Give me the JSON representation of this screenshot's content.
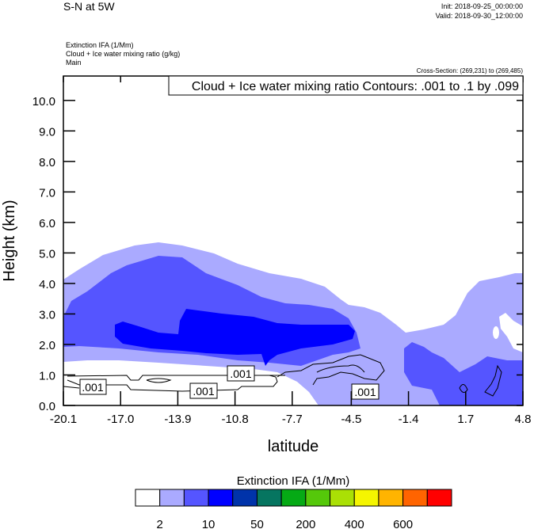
{
  "header": {
    "title": "S-N at 5W",
    "init": "Init: 2018-09-25_00:00:00",
    "valid": "Valid: 2018-09-30_12:00:00",
    "field1": "Extinction IFA   (1/Mm)",
    "field2": "Cloud + Ice water mixing ratio   (g/kg)",
    "field3": "Main",
    "cross_section": "Cross-Section: (269,231) to (269,485)"
  },
  "chart_data": {
    "type": "heatmap",
    "title": "Cloud + Ice water mixing ratio Contours: .001 to .1 by .099",
    "xlabel": "latitude",
    "ylabel": "Height (km)",
    "xlim": [
      -20.1,
      4.8
    ],
    "ylim": [
      0,
      10.8
    ],
    "xticks": [
      "-20.1",
      "-17.0",
      "-13.9",
      "-10.8",
      "-7.7",
      "-4.5",
      "-1.4",
      "1.7",
      "4.8"
    ],
    "yticks": [
      "0.0",
      "1.0",
      "2.0",
      "3.0",
      "4.0",
      "5.0",
      "6.0",
      "7.0",
      "8.0",
      "9.0",
      "10.0"
    ],
    "contour_labels": [
      ".001",
      ".001",
      ".001",
      ".001"
    ],
    "colorbar": {
      "title": "Extinction IFA  (1/Mm)",
      "colors": [
        "#ffffff",
        "#aaaaff",
        "#5555ff",
        "#0000ff",
        "#0033aa",
        "#067560",
        "#05aa15",
        "#55c80a",
        "#aae005",
        "#f5f500",
        "#ffb400",
        "#ff6400",
        "#ff0000"
      ],
      "labels": [
        "2",
        "10",
        "50",
        "200",
        "400",
        "600"
      ]
    }
  }
}
